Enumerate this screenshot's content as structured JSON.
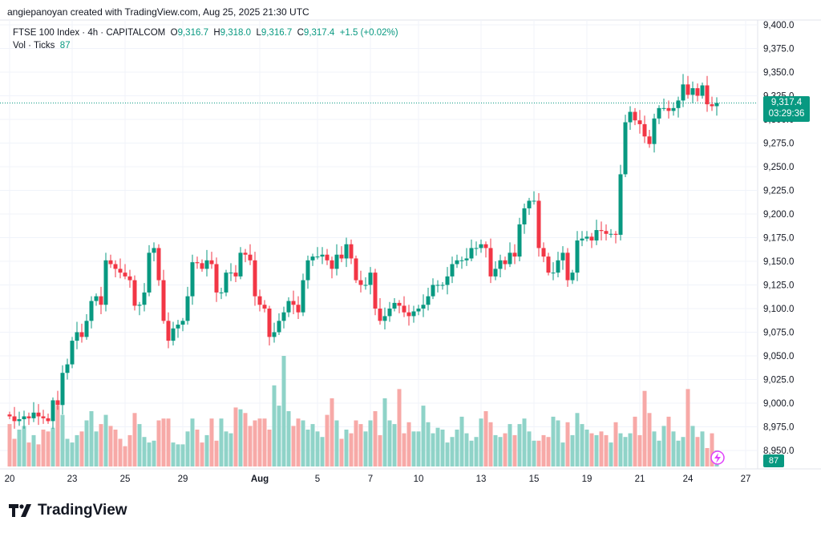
{
  "credit": "angiepanoyan created with TradingView.com, Aug 25, 2025 21:30 UTC",
  "legend": {
    "symbol": "FTSE 100 Index · 4h · CAPITALCOM",
    "o_label": "O",
    "o": "9,316.7",
    "h_label": "H",
    "h": "9,318.0",
    "l_label": "L",
    "l": "9,316.7",
    "c_label": "C",
    "c": "9,317.4",
    "change": "+1.5 (+0.02%)",
    "vol_label": "Vol · Ticks",
    "vol": "87"
  },
  "last_price": "9,317.4",
  "countdown": "03:29:36",
  "last_volume": "87",
  "logo_text": "TradingView",
  "colors": {
    "up": "#089981",
    "down": "#f23645",
    "up_vol": "#8fd3c8",
    "down_vol": "#f7a9a7"
  },
  "chart_data": {
    "type": "candlestick",
    "interval": "4h",
    "ylim": [
      8940,
      9410
    ],
    "y_ticks": [
      "9,400.0",
      "9,375.0",
      "9,350.0",
      "9,325.0",
      "9,300.0",
      "9,275.0",
      "9,250.0",
      "9,225.0",
      "9,200.0",
      "9,175.0",
      "9,150.0",
      "9,125.0",
      "9,100.0",
      "9,075.0",
      "9,050.0",
      "9,025.0",
      "9,000.0",
      "8,975.0",
      "8,950.0"
    ],
    "x_ticks": [
      {
        "label": "20",
        "index": 0
      },
      {
        "label": "23",
        "index": 13
      },
      {
        "label": "25",
        "index": 24
      },
      {
        "label": "29",
        "index": 36
      },
      {
        "label": "Aug",
        "index": 52
      },
      {
        "label": "5",
        "index": 64
      },
      {
        "label": "7",
        "index": 75
      },
      {
        "label": "10",
        "index": 85
      },
      {
        "label": "13",
        "index": 98
      },
      {
        "label": "15",
        "index": 109
      },
      {
        "label": "19",
        "index": 120
      },
      {
        "label": "21",
        "index": 131
      },
      {
        "label": "24",
        "index": 141
      },
      {
        "label": "27",
        "index": 153
      }
    ],
    "close": [
      8986,
      8981,
      8983,
      8986,
      8984,
      8990,
      8986,
      8984,
      8981,
      9003,
      8998,
      9032,
      9041,
      9066,
      9075,
      9070,
      9087,
      9108,
      9113,
      9104,
      9151,
      9147,
      9142,
      9138,
      9134,
      9130,
      9103,
      9104,
      9117,
      9159,
      9164,
      9130,
      9087,
      9066,
      9079,
      9083,
      9087,
      9113,
      9149,
      9148,
      9142,
      9151,
      9147,
      9117,
      9117,
      9138,
      9138,
      9134,
      9159,
      9157,
      9151,
      9113,
      9104,
      9100,
      9070,
      9075,
      9087,
      9096,
      9108,
      9104,
      9096,
      9130,
      9151,
      9155,
      9155,
      9157,
      9151,
      9142,
      9157,
      9153,
      9168,
      9153,
      9130,
      9125,
      9125,
      9138,
      9100,
      9087,
      9092,
      9100,
      9106,
      9103,
      9096,
      9092,
      9097,
      9100,
      9104,
      9113,
      9125,
      9125,
      9125,
      9134,
      9147,
      9151,
      9151,
      9153,
      9164,
      9164,
      9168,
      9164,
      9134,
      9142,
      9151,
      9147,
      9159,
      9155,
      9189,
      9206,
      9214,
      9214,
      9164,
      9155,
      9138,
      9138,
      9151,
      9159,
      9130,
      9138,
      9172,
      9174,
      9176,
      9172,
      9183,
      9182,
      9179,
      9179,
      9178,
      9242,
      9297,
      9308,
      9299,
      9295,
      9282,
      9274,
      9301,
      9312,
      9312,
      9309,
      9312,
      9320,
      9337,
      9326,
      9333,
      9325,
      9336,
      9316,
      9314,
      9317.4
    ],
    "volume": [
      230,
      150,
      200,
      220,
      130,
      170,
      120,
      200,
      190,
      210,
      330,
      280,
      150,
      130,
      170,
      190,
      250,
      300,
      190,
      230,
      280,
      220,
      200,
      150,
      110,
      170,
      290,
      230,
      160,
      130,
      140,
      250,
      260,
      260,
      130,
      120,
      120,
      190,
      260,
      200,
      130,
      170,
      260,
      140,
      260,
      190,
      180,
      320,
      310,
      290,
      220,
      250,
      260,
      260,
      200,
      440,
      330,
      600,
      300,
      220,
      260,
      250,
      200,
      230,
      190,
      160,
      280,
      370,
      250,
      150,
      200,
      180,
      250,
      230,
      190,
      250,
      300,
      170,
      370,
      250,
      230,
      420,
      180,
      240,
      190,
      190,
      330,
      240,
      180,
      210,
      200,
      130,
      160,
      200,
      270,
      180,
      140,
      160,
      260,
      300,
      240,
      170,
      160,
      180,
      230,
      170,
      230,
      260,
      190,
      140,
      140,
      170,
      160,
      270,
      250,
      130,
      240,
      170,
      290,
      230,
      200,
      180,
      170,
      190,
      170,
      130,
      240,
      180,
      160,
      180,
      270,
      170,
      410,
      290,
      190,
      140,
      220,
      270,
      190,
      140,
      160,
      420,
      220,
      160,
      190,
      100,
      180,
      87
    ]
  }
}
